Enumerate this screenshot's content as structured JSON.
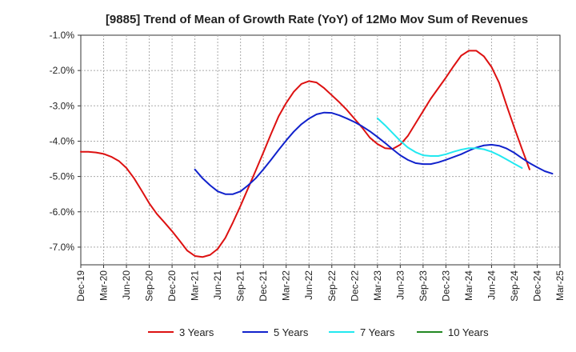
{
  "chart_data": {
    "type": "line",
    "title": "[9885]  Trend of Mean of Growth Rate (YoY) of 12Mo Mov Sum of Revenues",
    "xlabel": "",
    "ylabel": "",
    "ylim": [
      -7.5,
      -1.0
    ],
    "yticks": [
      -1.0,
      -2.0,
      -3.0,
      -4.0,
      -5.0,
      -6.0,
      -7.0
    ],
    "ytick_labels": [
      "-1.0%",
      "-2.0%",
      "-3.0%",
      "-4.0%",
      "-5.0%",
      "-6.0%",
      "-7.0%"
    ],
    "x_tick_labels": [
      "Dec-19",
      "Mar-20",
      "Jun-20",
      "Sep-20",
      "Dec-20",
      "Mar-21",
      "Jun-21",
      "Sep-21",
      "Dec-21",
      "Mar-22",
      "Jun-22",
      "Sep-22",
      "Dec-22",
      "Mar-23",
      "Jun-23",
      "Sep-23",
      "Dec-23",
      "Mar-24",
      "Jun-24",
      "Sep-24",
      "Dec-24",
      "Mar-25"
    ],
    "x_start": "Dec-19",
    "x_end": "Mar-25",
    "grid": true,
    "legend_position": "bottom",
    "series": [
      {
        "name": "3 Years",
        "color": "#dd1111",
        "start_month_index": 0,
        "values": [
          -4.3,
          -4.3,
          -4.32,
          -4.36,
          -4.44,
          -4.56,
          -4.76,
          -5.05,
          -5.4,
          -5.76,
          -6.06,
          -6.3,
          -6.55,
          -6.82,
          -7.1,
          -7.25,
          -7.28,
          -7.22,
          -7.05,
          -6.74,
          -6.3,
          -5.83,
          -5.33,
          -4.83,
          -4.32,
          -3.8,
          -3.3,
          -2.92,
          -2.6,
          -2.38,
          -2.3,
          -2.34,
          -2.5,
          -2.7,
          -2.9,
          -3.12,
          -3.37,
          -3.62,
          -3.9,
          -4.08,
          -4.2,
          -4.22,
          -4.1,
          -3.85,
          -3.5,
          -3.15,
          -2.8,
          -2.5,
          -2.2,
          -1.88,
          -1.58,
          -1.44,
          -1.44,
          -1.6,
          -1.9,
          -2.35,
          -3.0,
          -3.62,
          -4.22,
          -4.8
        ]
      },
      {
        "name": "5 Years",
        "color": "#1122cc",
        "start_month_index": 15,
        "values": [
          -4.8,
          -5.05,
          -5.25,
          -5.42,
          -5.5,
          -5.5,
          -5.42,
          -5.25,
          -5.05,
          -4.8,
          -4.53,
          -4.25,
          -3.98,
          -3.73,
          -3.52,
          -3.36,
          -3.24,
          -3.19,
          -3.2,
          -3.27,
          -3.36,
          -3.46,
          -3.58,
          -3.72,
          -3.88,
          -4.05,
          -4.23,
          -4.4,
          -4.53,
          -4.62,
          -4.65,
          -4.65,
          -4.6,
          -4.53,
          -4.45,
          -4.37,
          -4.27,
          -4.18,
          -4.12,
          -4.1,
          -4.13,
          -4.21,
          -4.33,
          -4.48,
          -4.62,
          -4.74,
          -4.85,
          -4.92
        ]
      },
      {
        "name": "7 Years",
        "color": "#22e8f0",
        "start_month_index": 39,
        "values": [
          -3.35,
          -3.55,
          -3.77,
          -3.99,
          -4.18,
          -4.31,
          -4.4,
          -4.42,
          -4.42,
          -4.37,
          -4.3,
          -4.24,
          -4.2,
          -4.2,
          -4.23,
          -4.3,
          -4.4,
          -4.52,
          -4.64,
          -4.76
        ]
      },
      {
        "name": "10 Years",
        "color": "#228822",
        "start_month_index": 0,
        "values": []
      }
    ]
  }
}
